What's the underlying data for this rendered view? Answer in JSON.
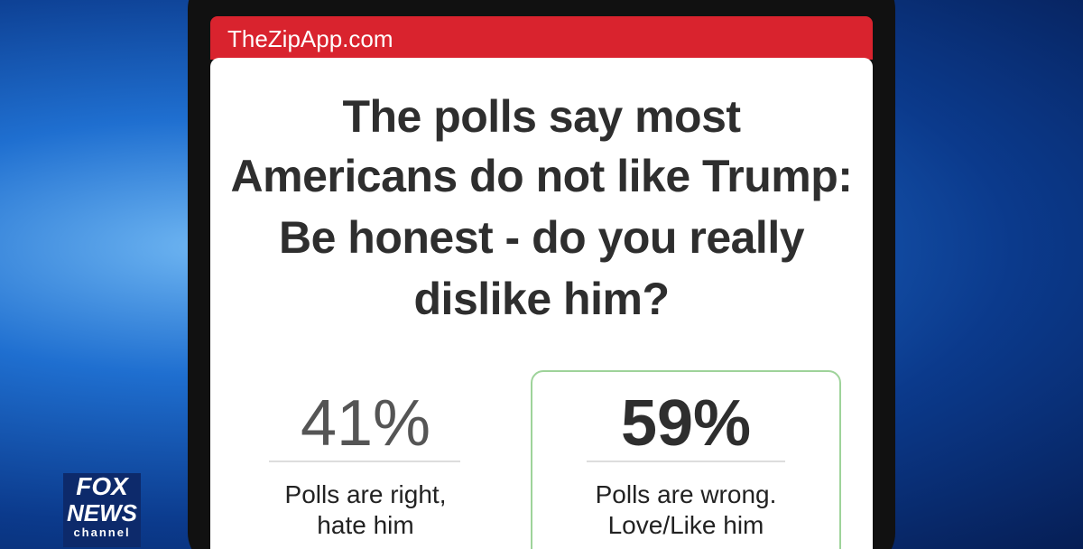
{
  "header": {
    "site": "TheZipApp.com"
  },
  "question": {
    "lines": [
      "The polls say most",
      "Americans do not like Trump:",
      "Be honest - do you really",
      "dislike him?"
    ]
  },
  "options": [
    {
      "percent": "41%",
      "label_lines": [
        "Polls are right,",
        "hate him"
      ]
    },
    {
      "percent": "59%",
      "label_lines": [
        "Polls are wrong.",
        "Love/Like him"
      ]
    }
  ],
  "logo": {
    "lines": [
      "FOX",
      "NEWS",
      "channel"
    ]
  }
}
